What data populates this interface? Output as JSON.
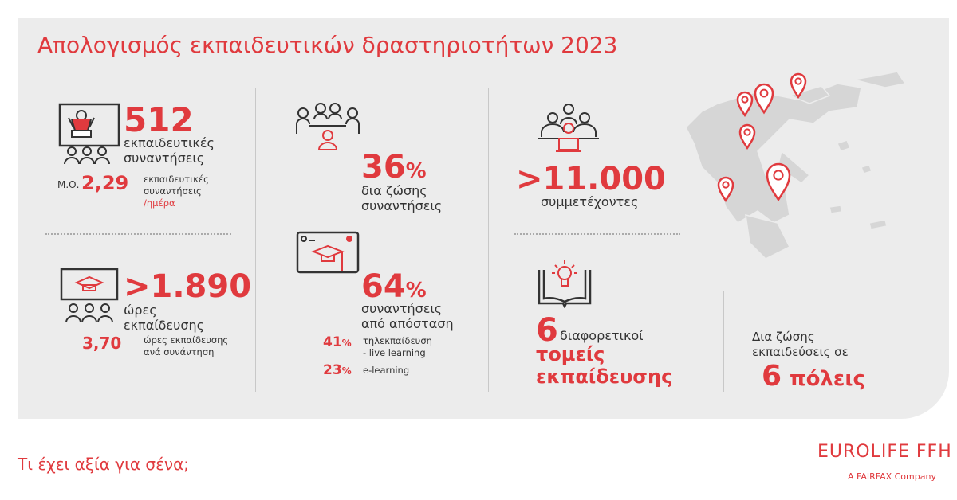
{
  "title": "Απολογισμός εκπαιδευτικών δραστηριοτήτων 2023",
  "colors": {
    "accent": "#e03a3e",
    "panel": "#ececec",
    "text": "#333333"
  },
  "meetings": {
    "icon": "presenter-classroom-icon",
    "value": "512",
    "label1": "εκπαιδευτικές",
    "label2": "συναντήσεις",
    "avg_prefix": "Μ.Ο.",
    "avg_value": "2,29",
    "avg_l1": "εκπαιδευτικές",
    "avg_l2": "συναντήσεις",
    "avg_l3": "/ημέρα"
  },
  "hours": {
    "icon": "graduation-board-icon",
    "value": ">1.890",
    "label1": "ώρες",
    "label2": "εκπαίδευσης",
    "avg_value": "3,70",
    "avg_l1": "ώρες εκπαίδευσης",
    "avg_l2": "ανά συνάντηση"
  },
  "in_person": {
    "icon": "meeting-table-icon",
    "value": "36",
    "unit": "%",
    "label1": "δια ζώσης",
    "label2": "συναντήσεις"
  },
  "remote": {
    "icon": "online-course-icon",
    "value": "64",
    "unit": "%",
    "label1": "συναντήσεις",
    "label2": "από απόσταση",
    "breakdown": [
      {
        "value": "41",
        "unit": "%",
        "l1": "τηλεκπαίδευση",
        "l2": "- live learning"
      },
      {
        "value": "23",
        "unit": "%",
        "l1": "e-learning",
        "l2": ""
      }
    ]
  },
  "participants": {
    "icon": "group-laptops-icon",
    "value": ">11.000",
    "label": "συμμετέχοντες"
  },
  "sectors": {
    "icon": "book-lightbulb-icon",
    "value": "6",
    "label1": "διαφορετικοί",
    "label2": "τομείς",
    "label3": "εκπαίδευσης"
  },
  "cities": {
    "icon": "greece-map-pins",
    "label1": "Δια ζώσης",
    "label2": "εκπαιδεύσεις σε",
    "value": "6",
    "label3": "πόλεις"
  },
  "footer": {
    "tagline": "Τι έχει αξία για σένα;",
    "logo": "EUROLIFE FFH",
    "logo_sub": "A FAIRFAX Company"
  }
}
